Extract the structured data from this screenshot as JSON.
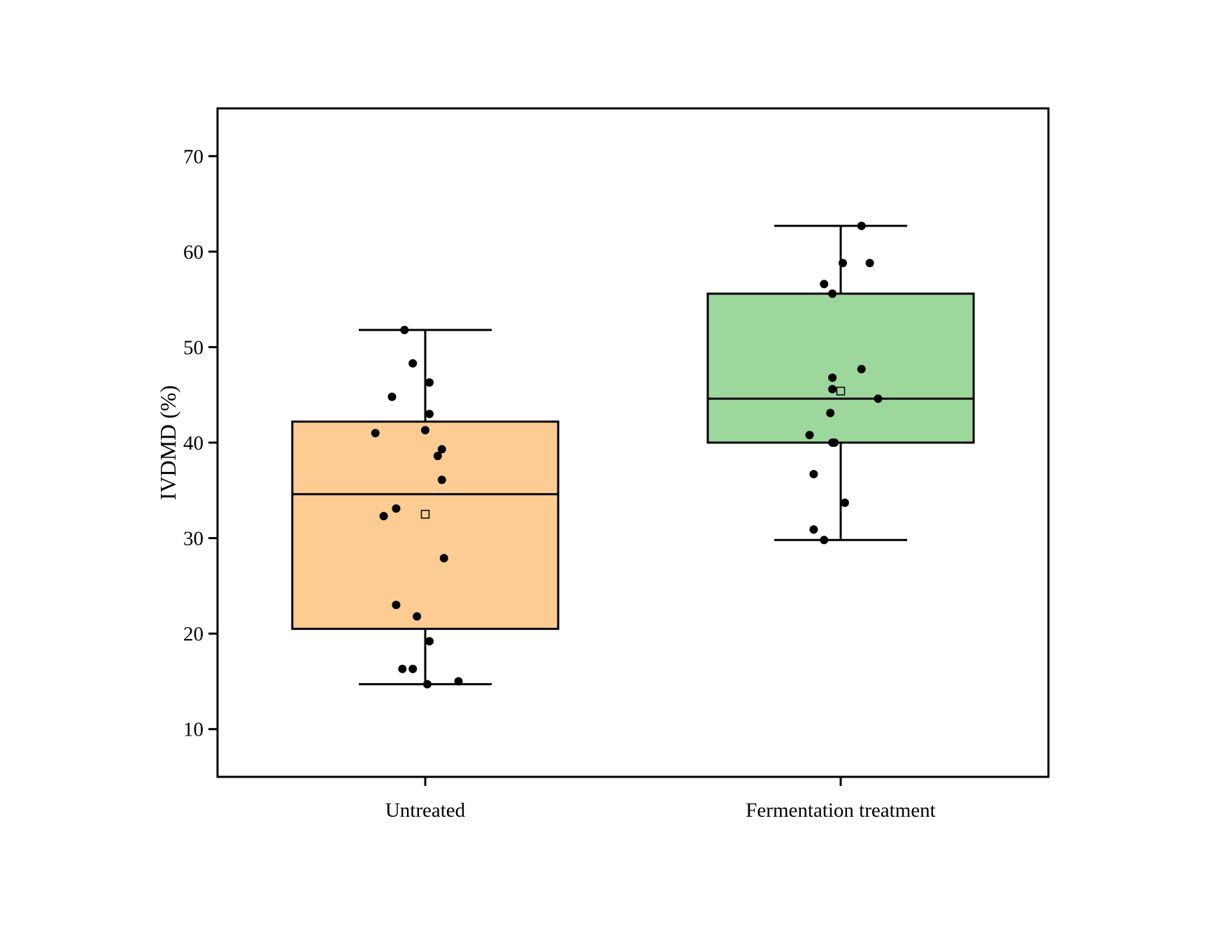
{
  "chart_data": {
    "type": "box",
    "title": "",
    "xlabel": "",
    "ylabel": "IVDMD (%)",
    "ylim": [
      5,
      75
    ],
    "yticks": [
      10,
      20,
      30,
      40,
      50,
      60,
      70
    ],
    "grid": false,
    "legend": "none",
    "categories": [
      "Untreated",
      "Fermentation treatment"
    ],
    "series": [
      {
        "category": "Untreated",
        "color": "#FCCC93",
        "whisker_low": 14.7,
        "q1": 20.5,
        "median": 34.6,
        "q3": 42.2,
        "whisker_high": 51.8,
        "mean": 32.5,
        "points": [
          {
            "offset": -0.05,
            "y": 51.8
          },
          {
            "offset": -0.03,
            "y": 48.3
          },
          {
            "offset": 0.01,
            "y": 46.3
          },
          {
            "offset": -0.08,
            "y": 44.8
          },
          {
            "offset": 0.01,
            "y": 43.0
          },
          {
            "offset": 0.0,
            "y": 41.3
          },
          {
            "offset": -0.12,
            "y": 41.0
          },
          {
            "offset": 0.04,
            "y": 39.3
          },
          {
            "offset": 0.03,
            "y": 38.6
          },
          {
            "offset": 0.04,
            "y": 36.1
          },
          {
            "offset": -0.07,
            "y": 33.1
          },
          {
            "offset": -0.1,
            "y": 32.3
          },
          {
            "offset": 0.045,
            "y": 27.9
          },
          {
            "offset": -0.07,
            "y": 23.0
          },
          {
            "offset": -0.02,
            "y": 21.8
          },
          {
            "offset": 0.01,
            "y": 19.2
          },
          {
            "offset": -0.055,
            "y": 16.3
          },
          {
            "offset": -0.03,
            "y": 16.3
          },
          {
            "offset": 0.08,
            "y": 15.0
          },
          {
            "offset": 0.005,
            "y": 14.7
          }
        ]
      },
      {
        "category": "Fermentation treatment",
        "color": "#9DD79C",
        "whisker_low": 29.8,
        "q1": 40.0,
        "median": 44.6,
        "q3": 55.6,
        "whisker_high": 62.7,
        "mean": 45.4,
        "points": [
          {
            "offset": 0.05,
            "y": 62.7
          },
          {
            "offset": 0.005,
            "y": 58.8
          },
          {
            "offset": 0.07,
            "y": 58.8
          },
          {
            "offset": -0.04,
            "y": 56.6
          },
          {
            "offset": -0.02,
            "y": 55.6
          },
          {
            "offset": 0.05,
            "y": 47.7
          },
          {
            "offset": -0.02,
            "y": 46.8
          },
          {
            "offset": -0.02,
            "y": 45.6
          },
          {
            "offset": 0.09,
            "y": 44.6
          },
          {
            "offset": -0.025,
            "y": 43.1
          },
          {
            "offset": -0.075,
            "y": 40.8
          },
          {
            "offset": -0.02,
            "y": 40.0
          },
          {
            "offset": -0.015,
            "y": 40.0
          },
          {
            "offset": -0.065,
            "y": 36.7
          },
          {
            "offset": 0.01,
            "y": 33.7
          },
          {
            "offset": -0.065,
            "y": 30.9
          },
          {
            "offset": -0.04,
            "y": 29.8
          }
        ]
      }
    ]
  }
}
